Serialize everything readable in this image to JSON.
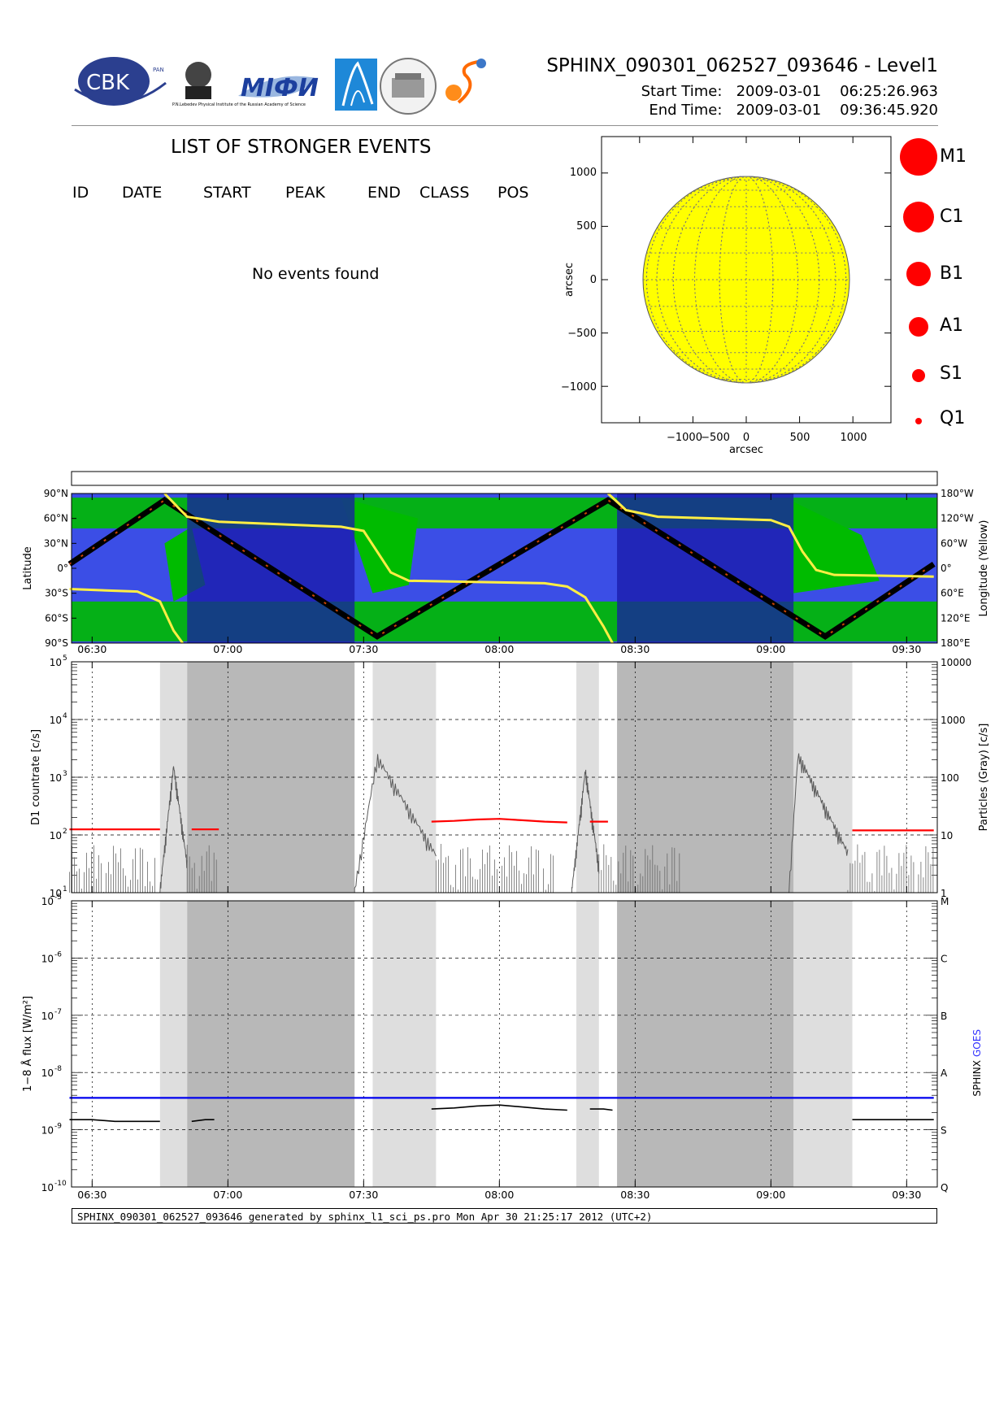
{
  "header": {
    "title": "SPHINX_090301_062527_093646 - Level1",
    "start_label": "Start Time:",
    "start_value": "2009-03-01    06:25:26.963",
    "end_label": "End Time:",
    "end_value": "2009-03-01    09:36:45.920"
  },
  "logos": {
    "cbk": "CBK",
    "cbk_small": "PAN",
    "lebedev": "P.N.Lebedev Physical Institute of the Russian Academy of Science",
    "mifi": "MIФИ"
  },
  "events_list": {
    "title": "LIST OF STRONGER EVENTS",
    "columns": [
      "ID",
      "DATE",
      "START",
      "PEAK",
      "END",
      "CLASS",
      "POS"
    ],
    "empty_message": "No events found"
  },
  "sun_map": {
    "xlabel": "arcsec",
    "ylabel": "arcsec",
    "x_ticks": [
      "−1000",
      "−500",
      "0",
      "500",
      "1000"
    ],
    "y_ticks": [
      "1000",
      "500",
      "0",
      "−500",
      "−1000"
    ],
    "disk_color": "#ffff00"
  },
  "class_legend": [
    "M1",
    "C1",
    "B1",
    "A1",
    "S1",
    "Q1"
  ],
  "orbit_panel": {
    "ylabel": "Latitude",
    "ylabel_right": "Longitude (Yellow)",
    "left_ticks": [
      "90°N",
      "60°N",
      "30°N",
      "0°",
      "30°S",
      "60°S",
      "90°S"
    ],
    "right_ticks": [
      "180°W",
      "120°W",
      "60°W",
      "0°",
      "60°E",
      "120°E",
      "180°E"
    ]
  },
  "time_ticks": [
    "06:30",
    "07:00",
    "07:30",
    "08:00",
    "08:30",
    "09:00",
    "09:30"
  ],
  "countrate_panel": {
    "ylabel": "D1 countrate [c/s]",
    "ylabel_right": "Particles (Gray) [c/s]",
    "right_ticks": [
      "10000",
      "1000",
      "100",
      "10",
      "1"
    ]
  },
  "flux_panel": {
    "ylabel": "1−8 Å flux [W/m²]",
    "right_ticks": [
      "M",
      "C",
      "B",
      "A",
      "S",
      "Q"
    ],
    "legend_sphinx": "SPHINX",
    "legend_goes": "GOES"
  },
  "footer": "SPHINX_090301_062527_093646 generated by sphinx_l1_sci_ps.pro Mon Apr 30 21:25:17 2012 (UTC+2)",
  "chart_data": [
    {
      "type": "scatter",
      "title": "",
      "xlabel": "arcsec",
      "ylabel": "arcsec",
      "xlim": [
        -1350,
        1350
      ],
      "ylim": [
        -1350,
        1350
      ],
      "solar_radius_arcsec": 968,
      "events": []
    },
    {
      "type": "line",
      "title": "",
      "ylabel": "Latitude",
      "ylabel_right": "Longitude (Yellow)",
      "xlim": [
        "06:25:27",
        "09:36:46"
      ],
      "ylim": [
        -90,
        90
      ],
      "series": [
        {
          "x": [
            "06:25",
            "06:46",
            "07:33",
            "08:24",
            "09:12",
            "09:36"
          ],
          "values": [
            5,
            82,
            -82,
            82,
            -82,
            5
          ]
        }
      ]
    },
    {
      "type": "line",
      "title": "",
      "ylabel": "D1 countrate [c/s]",
      "ylabel_right": "Particles (Gray) [c/s]",
      "xlim": [
        "06:25:27",
        "09:36:46"
      ],
      "ylim": [
        10,
        100000
      ],
      "yscale": "log",
      "series": [
        {
          "x": [
            "06:25",
            "06:30",
            "06:35",
            "06:40",
            "06:45"
          ],
          "values": [
            125,
            125,
            125,
            125,
            125
          ]
        },
        {
          "x": [
            "06:52",
            "06:55",
            "06:58"
          ],
          "values": [
            125,
            125,
            125
          ]
        },
        {
          "x": [
            "07:45",
            "07:50",
            "07:55",
            "08:00",
            "08:05",
            "08:10",
            "08:15"
          ],
          "values": [
            170,
            175,
            185,
            190,
            180,
            170,
            165
          ]
        },
        {
          "x": [
            "08:20",
            "08:22",
            "08:24"
          ],
          "values": [
            170,
            170,
            170
          ]
        },
        {
          "x": [
            "09:18",
            "09:22",
            "09:26",
            "09:30",
            "09:34",
            "09:36"
          ],
          "values": [
            120,
            120,
            120,
            120,
            120,
            120
          ]
        }
      ]
    },
    {
      "type": "line",
      "title": "",
      "ylabel": "1−8 Å flux [W/m²]",
      "xlim": [
        "06:25:27",
        "09:36:46"
      ],
      "ylim": [
        1e-10,
        1e-05
      ],
      "yscale": "log",
      "series": [
        {
          "name": "SPHINX",
          "x": [
            "06:25",
            "06:30",
            "06:35",
            "06:40",
            "06:45"
          ],
          "values": [
            1.5e-09,
            1.5e-09,
            1.4e-09,
            1.4e-09,
            1.4e-09
          ]
        },
        {
          "name": "SPHINX",
          "x": [
            "06:52",
            "06:55",
            "06:57"
          ],
          "values": [
            1.4e-09,
            1.5e-09,
            1.5e-09
          ]
        },
        {
          "name": "SPHINX",
          "x": [
            "07:45",
            "07:50",
            "07:55",
            "08:00",
            "08:05",
            "08:10",
            "08:15"
          ],
          "values": [
            2.3e-09,
            2.4e-09,
            2.6e-09,
            2.7e-09,
            2.5e-09,
            2.3e-09,
            2.2e-09
          ]
        },
        {
          "name": "SPHINX",
          "x": [
            "08:20",
            "08:23",
            "08:25"
          ],
          "values": [
            2.3e-09,
            2.3e-09,
            2.2e-09
          ]
        },
        {
          "name": "SPHINX",
          "x": [
            "09:18",
            "09:22",
            "09:26",
            "09:30",
            "09:34",
            "09:36"
          ],
          "values": [
            1.5e-09,
            1.5e-09,
            1.5e-09,
            1.5e-09,
            1.5e-09,
            1.5e-09
          ]
        },
        {
          "name": "GOES",
          "x": [
            "06:25",
            "09:36"
          ],
          "values": [
            3.6e-09,
            3.6e-09
          ]
        }
      ]
    }
  ]
}
